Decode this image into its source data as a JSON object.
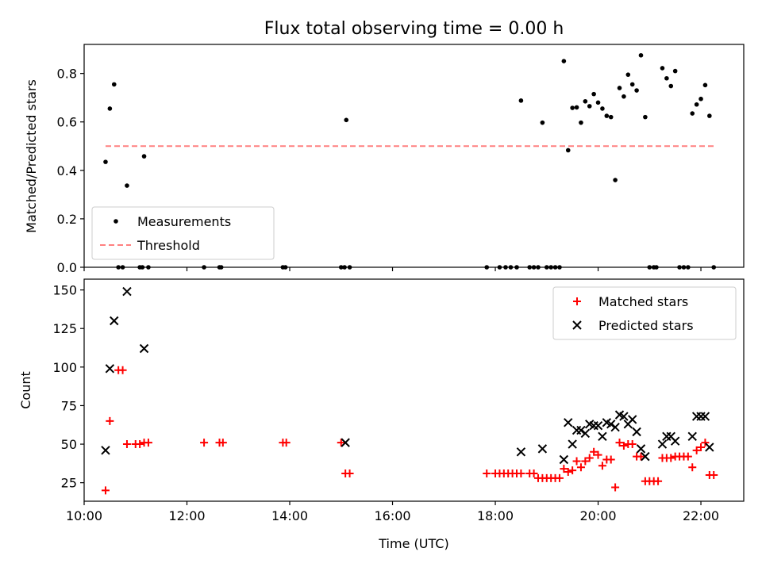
{
  "chart_data": [
    {
      "type": "scatter",
      "title": "Flux total observing time = 0.00 h",
      "xlabel": "",
      "ylabel": "Matched/Predicted stars",
      "xlim": [
        "10:00",
        "22:50"
      ],
      "ylim": [
        0,
        0.92
      ],
      "yticks": [
        0.0,
        0.2,
        0.4,
        0.6,
        0.8
      ],
      "xticks": [
        "10:00",
        "12:00",
        "14:00",
        "16:00",
        "18:00",
        "20:00",
        "22:00"
      ],
      "grid": false,
      "legend": "lower-left",
      "series": [
        {
          "name": "Measurements",
          "color": "#000000",
          "marker": "dot",
          "points": [
            [
              "10:25",
              0.435
            ],
            [
              "10:30",
              0.655
            ],
            [
              "10:35",
              0.755
            ],
            [
              "10:40",
              0.0
            ],
            [
              "10:45",
              0.0
            ],
            [
              "10:50",
              0.337
            ],
            [
              "11:05",
              0.0
            ],
            [
              "11:08",
              0.0
            ],
            [
              "11:10",
              0.458
            ],
            [
              "11:15",
              0.0
            ],
            [
              "12:20",
              0.0
            ],
            [
              "12:38",
              0.0
            ],
            [
              "12:40",
              0.0
            ],
            [
              "13:52",
              0.0
            ],
            [
              "13:55",
              0.0
            ],
            [
              "15:00",
              0.0
            ],
            [
              "15:04",
              0.0
            ],
            [
              "15:06",
              0.608
            ],
            [
              "15:10",
              0.0
            ],
            [
              "17:50",
              0.0
            ],
            [
              "18:05",
              0.0
            ],
            [
              "18:12",
              0.0
            ],
            [
              "18:18",
              0.0
            ],
            [
              "18:25",
              0.0
            ],
            [
              "18:30",
              0.688
            ],
            [
              "18:40",
              0.0
            ],
            [
              "18:45",
              0.0
            ],
            [
              "18:50",
              0.0
            ],
            [
              "18:55",
              0.597
            ],
            [
              "19:00",
              0.0
            ],
            [
              "19:05",
              0.0
            ],
            [
              "19:10",
              0.0
            ],
            [
              "19:15",
              0.0
            ],
            [
              "19:20",
              0.851
            ],
            [
              "19:25",
              0.483
            ],
            [
              "19:30",
              0.658
            ],
            [
              "19:35",
              0.66
            ],
            [
              "19:40",
              0.597
            ],
            [
              "19:45",
              0.685
            ],
            [
              "19:50",
              0.665
            ],
            [
              "19:55",
              0.715
            ],
            [
              "20:00",
              0.68
            ],
            [
              "20:05",
              0.655
            ],
            [
              "20:10",
              0.625
            ],
            [
              "20:15",
              0.62
            ],
            [
              "20:20",
              0.36
            ],
            [
              "20:25",
              0.74
            ],
            [
              "20:30",
              0.705
            ],
            [
              "20:35",
              0.795
            ],
            [
              "20:40",
              0.755
            ],
            [
              "20:45",
              0.73
            ],
            [
              "20:50",
              0.875
            ],
            [
              "20:55",
              0.62
            ],
            [
              "21:00",
              0.0
            ],
            [
              "21:05",
              0.0
            ],
            [
              "21:08",
              0.0
            ],
            [
              "21:15",
              0.822
            ],
            [
              "21:20",
              0.78
            ],
            [
              "21:25",
              0.748
            ],
            [
              "21:30",
              0.81
            ],
            [
              "21:35",
              0.0
            ],
            [
              "21:40",
              0.0
            ],
            [
              "21:45",
              0.0
            ],
            [
              "21:50",
              0.635
            ],
            [
              "21:55",
              0.672
            ],
            [
              "22:00",
              0.695
            ],
            [
              "22:05",
              0.752
            ],
            [
              "22:10",
              0.625
            ],
            [
              "22:15",
              0.0
            ]
          ]
        },
        {
          "name": "Threshold",
          "color": "#ff8080",
          "style": "dashed",
          "points": [
            [
              "10:25",
              0.5
            ],
            [
              "22:15",
              0.5
            ]
          ]
        }
      ]
    },
    {
      "type": "scatter",
      "title": "",
      "xlabel": "Time (UTC)",
      "ylabel": "Count",
      "xlim": [
        "10:00",
        "22:50"
      ],
      "ylim": [
        13,
        157
      ],
      "yticks": [
        25,
        50,
        75,
        100,
        125,
        150
      ],
      "xticks": [
        "10:00",
        "12:00",
        "14:00",
        "16:00",
        "18:00",
        "20:00",
        "22:00"
      ],
      "grid": false,
      "legend": "upper-right",
      "series": [
        {
          "name": "Matched stars",
          "color": "#ff0000",
          "marker": "plus",
          "points": [
            [
              "10:25",
              20
            ],
            [
              "10:30",
              65
            ],
            [
              "10:40",
              98
            ],
            [
              "10:45",
              98
            ],
            [
              "10:50",
              50
            ],
            [
              "11:00",
              50
            ],
            [
              "11:05",
              50
            ],
            [
              "11:10",
              51
            ],
            [
              "11:15",
              51
            ],
            [
              "12:20",
              51
            ],
            [
              "12:38",
              51
            ],
            [
              "12:42",
              51
            ],
            [
              "13:52",
              51
            ],
            [
              "13:56",
              51
            ],
            [
              "15:00",
              51
            ],
            [
              "15:05",
              31
            ],
            [
              "15:10",
              31
            ],
            [
              "17:50",
              31
            ],
            [
              "18:00",
              31
            ],
            [
              "18:05",
              31
            ],
            [
              "18:10",
              31
            ],
            [
              "18:15",
              31
            ],
            [
              "18:20",
              31
            ],
            [
              "18:25",
              31
            ],
            [
              "18:30",
              31
            ],
            [
              "18:40",
              31
            ],
            [
              "18:45",
              31
            ],
            [
              "18:50",
              28
            ],
            [
              "18:55",
              28
            ],
            [
              "19:00",
              28
            ],
            [
              "19:05",
              28
            ],
            [
              "19:10",
              28
            ],
            [
              "19:15",
              28
            ],
            [
              "19:20",
              34
            ],
            [
              "19:25",
              32
            ],
            [
              "19:30",
              33
            ],
            [
              "19:35",
              39
            ],
            [
              "19:40",
              35
            ],
            [
              "19:45",
              39
            ],
            [
              "19:50",
              41
            ],
            [
              "19:55",
              45
            ],
            [
              "20:00",
              43
            ],
            [
              "20:05",
              36
            ],
            [
              "20:10",
              40
            ],
            [
              "20:15",
              40
            ],
            [
              "20:20",
              22
            ],
            [
              "20:25",
              51
            ],
            [
              "20:30",
              49
            ],
            [
              "20:35",
              50
            ],
            [
              "20:40",
              50
            ],
            [
              "20:45",
              42
            ],
            [
              "20:50",
              42
            ],
            [
              "20:55",
              26
            ],
            [
              "21:00",
              26
            ],
            [
              "21:05",
              26
            ],
            [
              "21:10",
              26
            ],
            [
              "21:15",
              41
            ],
            [
              "21:20",
              41
            ],
            [
              "21:25",
              41
            ],
            [
              "21:30",
              42
            ],
            [
              "21:35",
              42
            ],
            [
              "21:40",
              42
            ],
            [
              "21:45",
              42
            ],
            [
              "21:50",
              35
            ],
            [
              "21:55",
              46
            ],
            [
              "22:00",
              48
            ],
            [
              "22:05",
              51
            ],
            [
              "22:10",
              30
            ],
            [
              "22:15",
              30
            ]
          ]
        },
        {
          "name": "Predicted stars",
          "color": "#000000",
          "marker": "x",
          "points": [
            [
              "10:25",
              46
            ],
            [
              "10:30",
              99
            ],
            [
              "10:35",
              130
            ],
            [
              "10:50",
              149
            ],
            [
              "11:10",
              112
            ],
            [
              "15:05",
              51
            ],
            [
              "18:30",
              45
            ],
            [
              "18:55",
              47
            ],
            [
              "19:20",
              40
            ],
            [
              "19:25",
              64
            ],
            [
              "19:30",
              50
            ],
            [
              "19:35",
              59
            ],
            [
              "19:40",
              59
            ],
            [
              "19:45",
              57
            ],
            [
              "19:50",
              63
            ],
            [
              "19:55",
              62
            ],
            [
              "20:00",
              62
            ],
            [
              "20:05",
              55
            ],
            [
              "20:10",
              64
            ],
            [
              "20:15",
              63
            ],
            [
              "20:20",
              61
            ],
            [
              "20:25",
              69
            ],
            [
              "20:30",
              68
            ],
            [
              "20:35",
              63
            ],
            [
              "20:40",
              66
            ],
            [
              "20:45",
              58
            ],
            [
              "20:50",
              47
            ],
            [
              "20:55",
              42
            ],
            [
              "21:15",
              50
            ],
            [
              "21:20",
              55
            ],
            [
              "21:25",
              55
            ],
            [
              "21:30",
              52
            ],
            [
              "21:50",
              55
            ],
            [
              "21:55",
              68
            ],
            [
              "22:00",
              68
            ],
            [
              "22:05",
              68
            ],
            [
              "22:10",
              48
            ]
          ]
        }
      ]
    }
  ]
}
